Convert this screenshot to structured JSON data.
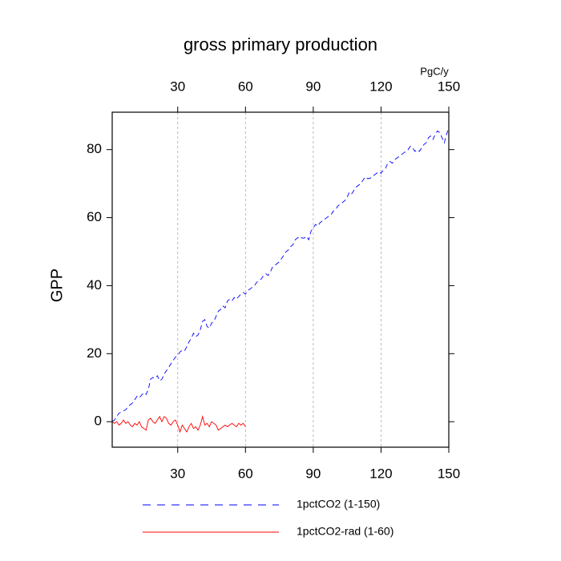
{
  "chart_data": {
    "type": "line",
    "title": "gross primary production",
    "ylabel": "GPP",
    "x2label": "PgC/y",
    "xlim": [
      1,
      150
    ],
    "ylim": [
      -7.5,
      91
    ],
    "xticks": [
      30,
      60,
      90,
      120,
      150
    ],
    "yticks": [
      0,
      20,
      40,
      60,
      80
    ],
    "xtick_color": "#ff0000",
    "x2tick_color": "#0000ff",
    "grid": "x",
    "series": [
      {
        "name": "1pctCO2 (1-150)",
        "color": "#0000ff",
        "dash": "dashed",
        "x": [
          1,
          2,
          3,
          4,
          5,
          6,
          7,
          8,
          9,
          10,
          11,
          12,
          13,
          14,
          15,
          16,
          17,
          18,
          19,
          20,
          21,
          22,
          23,
          24,
          25,
          26,
          27,
          28,
          29,
          30,
          31,
          32,
          33,
          34,
          35,
          36,
          37,
          38,
          39,
          40,
          41,
          42,
          43,
          44,
          45,
          46,
          47,
          48,
          49,
          50,
          51,
          52,
          53,
          54,
          55,
          56,
          57,
          58,
          59,
          60,
          61,
          62,
          63,
          64,
          65,
          66,
          67,
          68,
          69,
          70,
          71,
          72,
          73,
          74,
          75,
          76,
          77,
          78,
          79,
          80,
          81,
          82,
          83,
          84,
          85,
          86,
          87,
          88,
          89,
          90,
          91,
          92,
          93,
          94,
          95,
          96,
          97,
          98,
          99,
          100,
          101,
          102,
          103,
          104,
          105,
          106,
          107,
          108,
          109,
          110,
          111,
          112,
          113,
          114,
          115,
          116,
          117,
          118,
          119,
          120,
          121,
          122,
          123,
          124,
          125,
          126,
          127,
          128,
          129,
          130,
          131,
          132,
          133,
          134,
          135,
          136,
          137,
          138,
          139,
          140,
          141,
          142,
          143,
          144,
          145,
          146,
          147,
          148,
          149,
          150
        ],
        "values": [
          0,
          0.5,
          1.5,
          2.5,
          2.8,
          3.2,
          3.5,
          4.5,
          5,
          5.5,
          6.5,
          7.5,
          7,
          7.8,
          8.5,
          8,
          9.5,
          12.5,
          13,
          12.8,
          13.5,
          12,
          12.5,
          14,
          15,
          16,
          17,
          18,
          19,
          19.5,
          20.5,
          21,
          20.8,
          22,
          23.5,
          24.5,
          26,
          25,
          25.5,
          27,
          29.5,
          30,
          28,
          27.5,
          29,
          29.5,
          31,
          32.5,
          33,
          34,
          33.5,
          35.5,
          36,
          35.5,
          36.5,
          36,
          36.8,
          37.5,
          38,
          37.5,
          38.5,
          39,
          39.5,
          40,
          41,
          41.5,
          42,
          43,
          43.5,
          43,
          44,
          45.5,
          46,
          46.5,
          47,
          48,
          49,
          50,
          50.5,
          51.5,
          52,
          53.5,
          54,
          54.5,
          54,
          54,
          54.5,
          53.5,
          56,
          57,
          58,
          57.5,
          58.5,
          59,
          59.5,
          60,
          60.5,
          61,
          62,
          62.5,
          63.5,
          64,
          64.5,
          65,
          66,
          67.5,
          67,
          68,
          69,
          69.5,
          70,
          71,
          72,
          71.5,
          71.5,
          72,
          72.5,
          73,
          73.5,
          73,
          74,
          74.5,
          76,
          76.5,
          76,
          77,
          77.5,
          78,
          78.5,
          79,
          79.5,
          80,
          81,
          80.5,
          79.5,
          80,
          79.5,
          80.5,
          81.5,
          82,
          83.5,
          84,
          83,
          84.5,
          85.5,
          85,
          83.5,
          82,
          84.5,
          86.5
        ]
      },
      {
        "name": "1pctCO2-rad (1-60)",
        "color": "#ff0000",
        "dash": "solid",
        "x": [
          1,
          2,
          3,
          4,
          5,
          6,
          7,
          8,
          9,
          10,
          11,
          12,
          13,
          14,
          15,
          16,
          17,
          18,
          19,
          20,
          21,
          22,
          23,
          24,
          25,
          26,
          27,
          28,
          29,
          30,
          31,
          32,
          33,
          34,
          35,
          36,
          37,
          38,
          39,
          40,
          41,
          42,
          43,
          44,
          45,
          46,
          47,
          48,
          49,
          50,
          51,
          52,
          53,
          54,
          55,
          56,
          57,
          58,
          59,
          60
        ],
        "values": [
          0,
          -0.5,
          0,
          -1,
          -0.5,
          0.5,
          -0.5,
          0,
          -1,
          -1.5,
          -0.5,
          -1,
          0,
          -1.5,
          -2,
          -2.5,
          0.5,
          1,
          0,
          -0.5,
          0.5,
          1.5,
          0,
          1.5,
          1,
          -0.5,
          -1,
          0,
          0.5,
          -1,
          -3,
          -1,
          -2,
          -3,
          -1.5,
          -0.5,
          -2,
          -1.5,
          -2.5,
          -1,
          1.5,
          -1,
          -0.5,
          -1.5,
          0,
          -0.5,
          -1,
          -2.5,
          -2,
          -1.5,
          -1,
          -1.5,
          -1,
          -0.5,
          -1,
          -1.5,
          -0.5,
          -1,
          -0.5,
          -1.5
        ]
      }
    ]
  }
}
